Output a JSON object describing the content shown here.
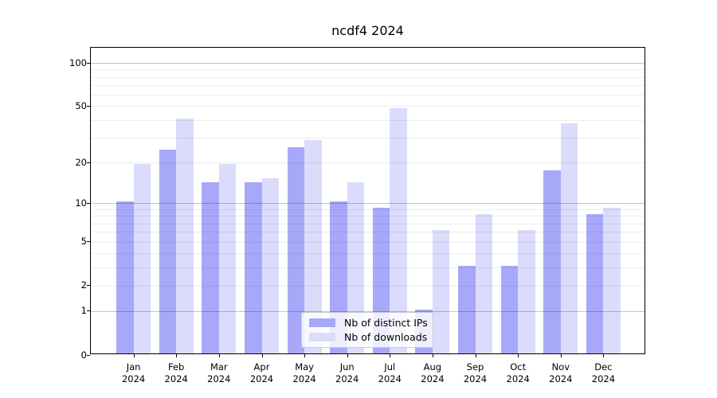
{
  "title": "ncdf4 2024",
  "chart_data": {
    "type": "bar",
    "title": "ncdf4 2024",
    "year": "2024",
    "months": [
      "Jan",
      "Feb",
      "Mar",
      "Apr",
      "May",
      "Jun",
      "Jul",
      "Aug",
      "Sep",
      "Oct",
      "Nov",
      "Dec"
    ],
    "series": [
      {
        "name": "Nb of distinct IPs",
        "color_solid": "#a8a8f8",
        "color_fill": "rgba(0,0,235,0.34)",
        "values": [
          10,
          24,
          14,
          14,
          25,
          10,
          9,
          1,
          3,
          3,
          17,
          8
        ]
      },
      {
        "name": "Nb of downloads",
        "color_solid": "#dcdcf9",
        "color_fill": "rgba(0,0,235,0.14)",
        "values": [
          19,
          40,
          19,
          15,
          28,
          14,
          47,
          6,
          8,
          6,
          37,
          9
        ]
      }
    ],
    "y_axis": {
      "scale": "log1p",
      "tick_labels": [
        0,
        1,
        2,
        5,
        10,
        20,
        50,
        100
      ],
      "major_gridlines": [
        1,
        10,
        100
      ],
      "minor_gridlines": [
        2,
        3,
        4,
        5,
        6,
        7,
        8,
        9,
        20,
        30,
        40,
        50,
        60,
        70,
        80,
        90
      ],
      "major_grid_color": "#c3c3c3",
      "minor_grid_color": "#ededed"
    },
    "legend_position": "bottom-center",
    "grid": true
  }
}
